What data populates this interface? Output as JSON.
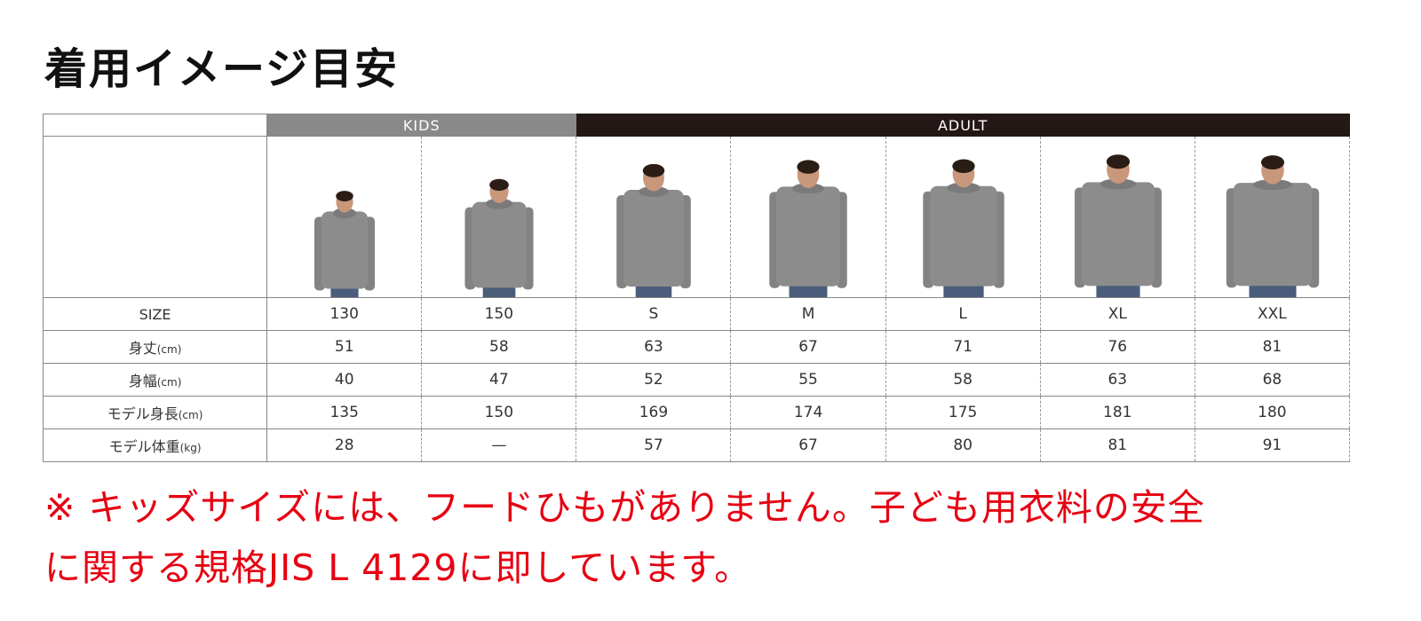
{
  "title": "着用イメージ目安",
  "groups": {
    "kids": "KIDS",
    "adult": "ADULT"
  },
  "colors": {
    "kids_header": "#898989",
    "adult_header": "#231815",
    "note": "#e60012",
    "hoodie": "#8c8c8c"
  },
  "rows": [
    {
      "label": "SIZE",
      "unit": "",
      "values": [
        "130",
        "150",
        "S",
        "M",
        "L",
        "XL",
        "XXL"
      ]
    },
    {
      "label": "身丈",
      "unit": "(cm)",
      "values": [
        "51",
        "58",
        "63",
        "67",
        "71",
        "76",
        "81"
      ]
    },
    {
      "label": "身幅",
      "unit": "(cm)",
      "values": [
        "40",
        "47",
        "52",
        "55",
        "58",
        "63",
        "68"
      ]
    },
    {
      "label": "モデル身長",
      "unit": "(cm)",
      "values": [
        "135",
        "150",
        "169",
        "174",
        "175",
        "181",
        "180"
      ]
    },
    {
      "label": "モデル体重",
      "unit": "(kg)",
      "values": [
        "28",
        "—",
        "57",
        "67",
        "80",
        "81",
        "91"
      ]
    }
  ],
  "note": {
    "line1": "※ キッズサイズには、フードひもがありません。子ども用衣料の安全",
    "line2": "に関する規格JIS L 4129に即しています。"
  }
}
